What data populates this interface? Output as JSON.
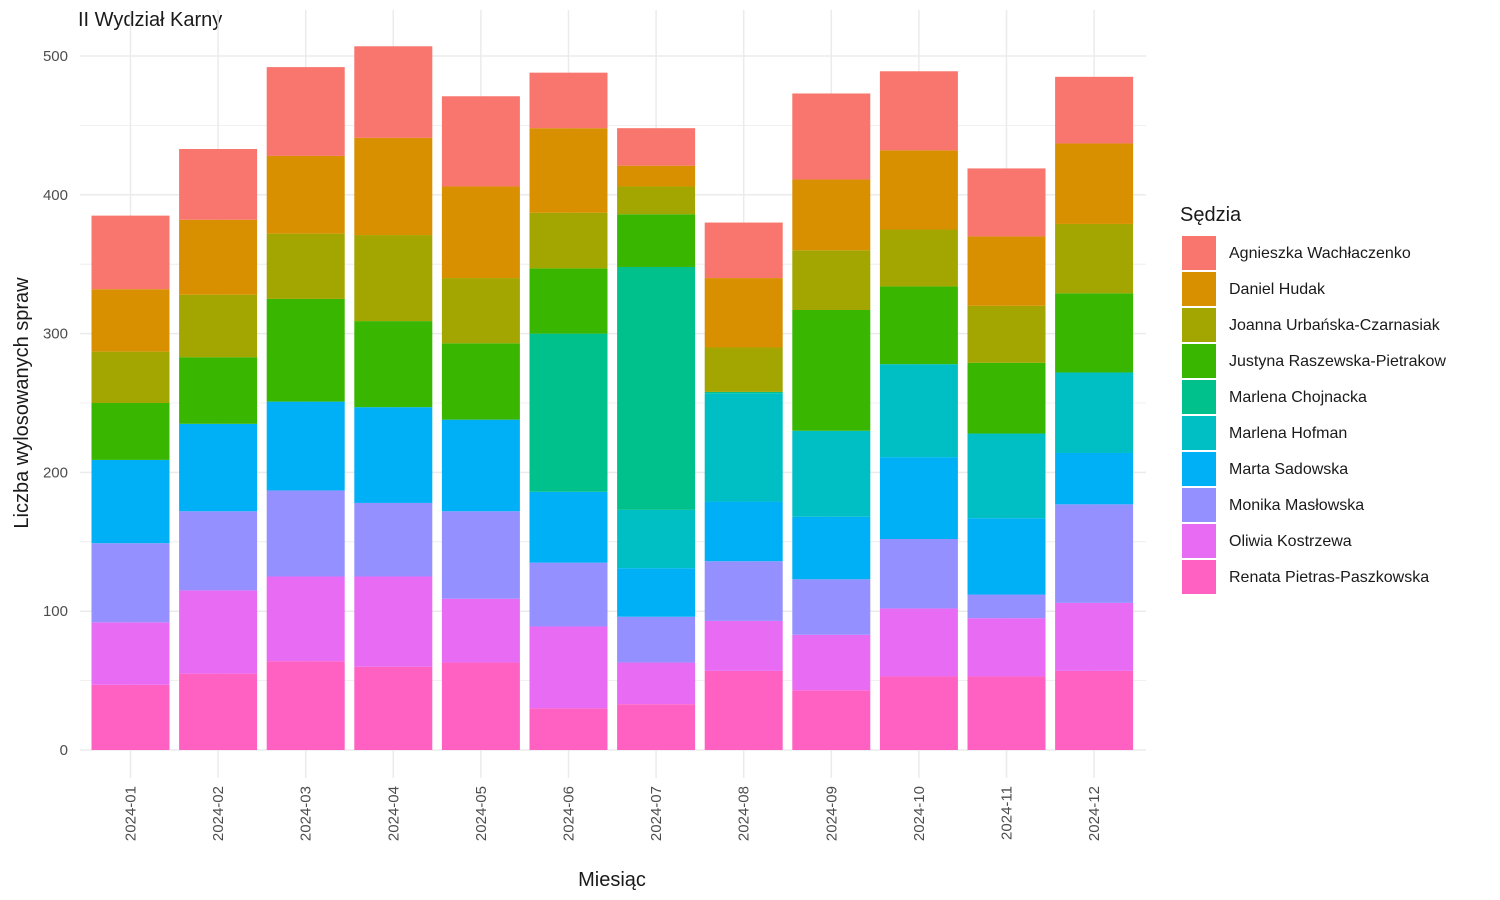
{
  "chart_data": {
    "type": "bar",
    "stacked": true,
    "title": "II Wydział Karny",
    "xlabel": "Miesiąc",
    "ylabel": "Liczba wylosowanych spraw",
    "ylim": [
      0,
      525
    ],
    "yticks": [
      0,
      100,
      200,
      300,
      400,
      500
    ],
    "grid": true,
    "legend": {
      "title": "Sędzia",
      "position": "right"
    },
    "categories": [
      "2024-01",
      "2024-02",
      "2024-03",
      "2024-04",
      "2024-05",
      "2024-06",
      "2024-07",
      "2024-08",
      "2024-09",
      "2024-10",
      "2024-11",
      "2024-12"
    ],
    "series": [
      {
        "name": "Renata Pietras-Paszkowska",
        "color": "#FF61C3",
        "values": [
          47,
          55,
          64,
          60,
          63,
          30,
          33,
          57,
          43,
          53,
          53,
          57
        ]
      },
      {
        "name": "Oliwia Kostrzewa",
        "color": "#E76BF3",
        "values": [
          45,
          60,
          61,
          65,
          46,
          59,
          30,
          36,
          40,
          49,
          42,
          49
        ]
      },
      {
        "name": "Monika Masłowska",
        "color": "#9590FF",
        "values": [
          57,
          57,
          62,
          53,
          63,
          46,
          33,
          43,
          40,
          50,
          17,
          71
        ]
      },
      {
        "name": "Marta Sadowska",
        "color": "#00B0F6",
        "values": [
          60,
          63,
          64,
          69,
          66,
          51,
          35,
          43,
          45,
          59,
          55,
          37
        ]
      },
      {
        "name": "Marlena Hofman",
        "color": "#00BFC4",
        "values": [
          0,
          0,
          0,
          0,
          0,
          0,
          42,
          78,
          62,
          67,
          61,
          58
        ]
      },
      {
        "name": "Marlena Chojnacka",
        "color": "#00C08B",
        "values": [
          0,
          0,
          0,
          0,
          0,
          114,
          175,
          1,
          0,
          0,
          0,
          0
        ]
      },
      {
        "name": "Justyna Raszewska-Pietrakow",
        "color": "#39B600",
        "values": [
          41,
          48,
          74,
          62,
          55,
          47,
          38,
          0,
          87,
          56,
          51,
          57
        ]
      },
      {
        "name": "Joanna Urbańska-Czarnasiak",
        "color": "#A3A500",
        "values": [
          37,
          45,
          47,
          62,
          47,
          40,
          20,
          32,
          43,
          41,
          41,
          50
        ]
      },
      {
        "name": "Daniel Hudak",
        "color": "#D89000",
        "values": [
          45,
          54,
          56,
          70,
          66,
          61,
          15,
          50,
          51,
          57,
          50,
          58
        ]
      },
      {
        "name": "Agnieszka Wachłaczenko",
        "color": "#F8766D",
        "values": [
          53,
          51,
          64,
          66,
          65,
          40,
          27,
          40,
          62,
          57,
          49,
          48
        ]
      }
    ]
  }
}
